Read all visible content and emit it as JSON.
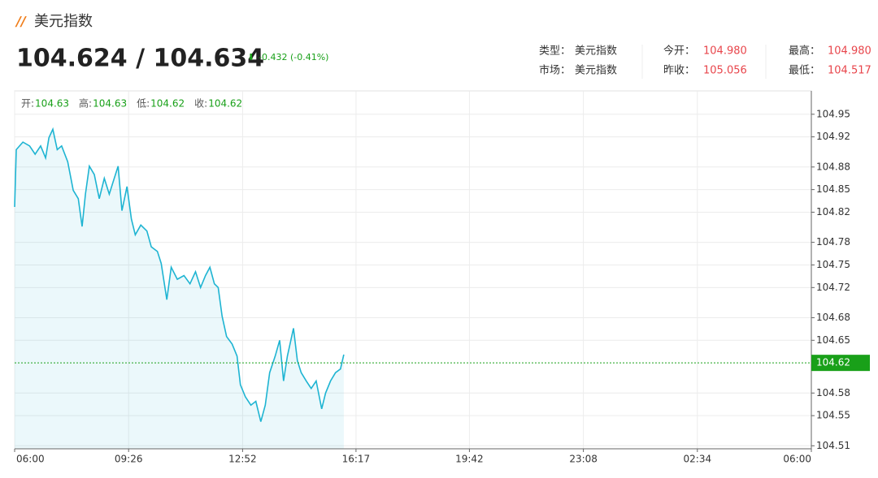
{
  "header": {
    "title": "美元指数",
    "price": "104.624 / 104.634",
    "change": "-0.432 (-0.41%)",
    "info": [
      [
        {
          "label": "类型：",
          "value": "美元指数"
        },
        {
          "label": "今开：",
          "value": "104.980"
        },
        {
          "label": "最高：",
          "value": "104.980"
        }
      ],
      [
        {
          "label": "市场：",
          "value": "美元指数"
        },
        {
          "label": "昨收：",
          "value": "105.056"
        },
        {
          "label": "最低：",
          "value": "104.517"
        }
      ]
    ]
  },
  "chart_data": {
    "type": "line",
    "ohlc": [
      {
        "label": "开:",
        "value": 104.63
      },
      {
        "label": "高:",
        "value": 104.63
      },
      {
        "label": "低:",
        "value": 104.62
      },
      {
        "label": "收:",
        "value": 104.62
      }
    ],
    "x": [
      0,
      3,
      15,
      27,
      37,
      47,
      56,
      62,
      69,
      77,
      85,
      96,
      106,
      115,
      122,
      128,
      135,
      144,
      153,
      162,
      171,
      178,
      187,
      194,
      203,
      211,
      218,
      228,
      239,
      247,
      258,
      265,
      275,
      283,
      294,
      306,
      317,
      327,
      336,
      345,
      353,
      361,
      368,
      375,
      383,
      393,
      402,
      408,
      417,
      427,
      436,
      445,
      453,
      461,
      471,
      479,
      486,
      493,
      504,
      511,
      518,
      527,
      536,
      545,
      555,
      562,
      571,
      580,
      589,
      595
    ],
    "values": [
      104.827,
      104.903,
      104.913,
      104.908,
      104.897,
      104.908,
      104.892,
      104.919,
      104.93,
      104.903,
      104.908,
      104.887,
      104.849,
      104.838,
      104.801,
      104.844,
      104.881,
      104.87,
      104.838,
      104.865,
      104.844,
      104.86,
      104.881,
      104.822,
      104.854,
      104.811,
      104.79,
      104.803,
      104.795,
      104.774,
      104.768,
      104.752,
      104.704,
      104.747,
      104.731,
      104.736,
      104.725,
      104.741,
      104.72,
      104.736,
      104.747,
      104.725,
      104.72,
      104.682,
      104.655,
      104.645,
      104.629,
      104.591,
      104.575,
      104.564,
      104.569,
      104.542,
      104.564,
      104.607,
      104.629,
      104.65,
      104.596,
      104.629,
      104.666,
      104.623,
      104.607,
      104.596,
      104.586,
      104.596,
      104.559,
      104.58,
      104.596,
      104.607,
      104.612,
      104.631
    ],
    "color": "#1eb4d2",
    "current_price": 104.62,
    "current_color": "#19a019",
    "xlim": [
      0,
      1440
    ],
    "xticks": [
      {
        "value": 0,
        "label": "06:00"
      },
      {
        "value": 206,
        "label": "09:26"
      },
      {
        "value": 412,
        "label": "12:52"
      },
      {
        "value": 617,
        "label": "16:17"
      },
      {
        "value": 822,
        "label": "19:42"
      },
      {
        "value": 1028,
        "label": "23:08"
      },
      {
        "value": 1234,
        "label": "02:34"
      },
      {
        "value": 1440,
        "label": "06:00"
      }
    ],
    "ylim": [
      104.506,
      104.981
    ],
    "yticks": [
      104.95,
      104.92,
      104.88,
      104.85,
      104.82,
      104.78,
      104.75,
      104.72,
      104.68,
      104.65,
      104.58,
      104.55,
      104.51
    ],
    "grid": true
  }
}
